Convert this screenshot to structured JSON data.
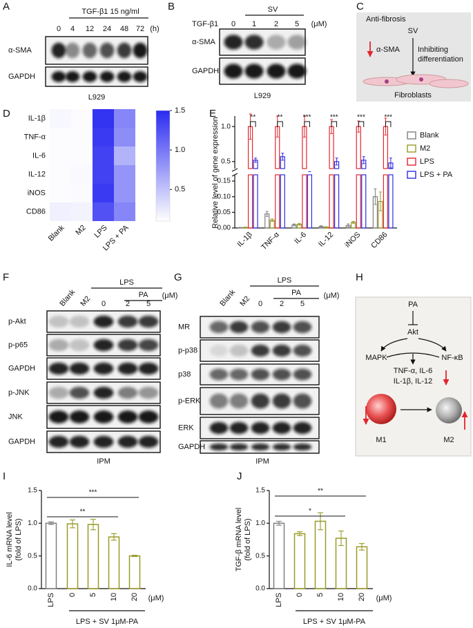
{
  "panel_labels": [
    "A",
    "B",
    "C",
    "D",
    "E",
    "F",
    "G",
    "H",
    "I",
    "J"
  ],
  "blot_a": {
    "treatment": "TGF-β1 15 ng/ml",
    "lanes": [
      "0",
      "4",
      "12",
      "24",
      "48",
      "72"
    ],
    "unit": "(h)",
    "rows": [
      "α-SMA",
      "GAPDH"
    ],
    "cell_line": "L929"
  },
  "blot_b": {
    "treatment": "TGF-β1",
    "drug": "SV",
    "lanes": [
      "0",
      "1",
      "2",
      "5"
    ],
    "unit": "(μM)",
    "rows": [
      "α-SMA",
      "GAPDH"
    ],
    "cell_line": "L929"
  },
  "scheme_c": {
    "title": "Anti-fibrosis",
    "agent": "SV",
    "effect": [
      "Inhibiting",
      "differentiation"
    ],
    "marker": "α-SMA",
    "cells": "Fibroblasts"
  },
  "blot_f": {
    "lanes": [
      "Blank",
      "M2",
      "0",
      "2",
      "5"
    ],
    "unit": "(μM)",
    "group": "LPS",
    "subgroup": "PA",
    "rows": [
      "p-Akt",
      "p-p65",
      "GAPDH",
      "p-JNK",
      "JNK",
      "GAPDH"
    ],
    "cell_type": "IPM"
  },
  "blot_g": {
    "lanes": [
      "Blank",
      "M2",
      "0",
      "2",
      "5"
    ],
    "unit": "(μM)",
    "group": "LPS",
    "subgroup": "PA",
    "rows": [
      "MR",
      "p-p38",
      "p38",
      "p-ERK",
      "ERK",
      "GAPDH"
    ],
    "cell_type": "IPM"
  },
  "scheme_h": {
    "agent": "PA",
    "target": "Akt",
    "left": "MAPK",
    "right": "NF-κB",
    "cytokines": [
      "TNF-α, IL-6",
      "IL-1β, IL-12"
    ],
    "cells": [
      "M1",
      "M2"
    ]
  },
  "chart_data": [
    {
      "type": "heatmap",
      "rows": [
        "IL-1β",
        "TNF-α",
        "IL-6",
        "IL-12",
        "iNOS",
        "CD86"
      ],
      "columns": [
        "Blank",
        "M2",
        "LPS",
        "LPS + PA"
      ],
      "values": [
        [
          0.15,
          0.12,
          1.45,
          0.9
        ],
        [
          0.12,
          0.12,
          1.4,
          0.85
        ],
        [
          0.12,
          0.12,
          1.35,
          0.6
        ],
        [
          0.12,
          0.14,
          1.35,
          0.8
        ],
        [
          0.12,
          0.13,
          1.4,
          0.8
        ],
        [
          0.2,
          0.18,
          1.25,
          0.9
        ]
      ],
      "clim": [
        0.1,
        1.5
      ],
      "cticks": [
        0.5,
        {
          "value": 1,
          "label": "1.0"
        },
        1.5
      ],
      "colors": [
        "#ffffff",
        "#2b2bf2"
      ]
    },
    {
      "type": "bar",
      "ylabel": "Relative level of gene expression",
      "categories": [
        "IL-1β",
        "TNF-α",
        "IL-6",
        "IL-12",
        "iNOS",
        "CD86"
      ],
      "series": [
        {
          "name": "Blank",
          "color": "#7f7f7f",
          "values": [
            0.001,
            0.045,
            0.01,
            0.005,
            0.008,
            0.1
          ],
          "errors": [
            0.001,
            0.008,
            0.003,
            0.002,
            0.005,
            0.025
          ]
        },
        {
          "name": "M2",
          "color": "#999926",
          "values": [
            0.002,
            0.025,
            0.012,
            0.003,
            0.018,
            0.085
          ],
          "errors": [
            0.001,
            0.004,
            0.003,
            0.001,
            0.003,
            0.03
          ]
        },
        {
          "name": "LPS",
          "color": "#e3252d",
          "values": [
            1,
            1,
            1,
            1,
            1,
            1
          ],
          "errors": [
            0.18,
            0.15,
            0.15,
            0.1,
            0.08,
            0.12
          ]
        },
        {
          "name": "LPS + PA",
          "color": "#2b2be6",
          "values": [
            0.52,
            0.57,
            0.35,
            0.5,
            0.52,
            0.48
          ],
          "errors": [
            0.03,
            0.05,
            0.02,
            0.05,
            0.05,
            0.07
          ]
        }
      ],
      "ylim": [
        0,
        0.17
      ],
      "yticks": [
        {
          "value": 0,
          "label": "0.00"
        },
        {
          "value": 0.05,
          "label": "0.05"
        },
        {
          "value": 0.1,
          "label": "0.10"
        },
        {
          "value": 0.15,
          "label": "0.15"
        }
      ],
      "ylim_upper": [
        0.4,
        1.15
      ],
      "yticks_upper": [
        0.5,
        {
          "value": 1,
          "label": "1.0"
        }
      ],
      "annotations": [
        "**",
        "**",
        "***",
        "***",
        "***",
        "***"
      ],
      "legend": "right"
    },
    {
      "type": "bar",
      "ylabel": [
        "IL-6 mRNA level",
        "(fold of LPS)"
      ],
      "categories": [
        "LPS",
        "0",
        "5",
        "10",
        "20"
      ],
      "values": [
        1,
        0.99,
        0.98,
        0.79,
        0.5
      ],
      "errors": [
        0.02,
        0.06,
        0.08,
        0.05,
        0.01
      ],
      "colors": [
        "#7f7f7f",
        "#999926",
        "#999926",
        "#999926",
        "#999926"
      ],
      "ylim": [
        0,
        1.5
      ],
      "yticks": [
        {
          "value": 0,
          "label": "0.0"
        },
        0.5,
        {
          "value": 1,
          "label": "1.0"
        },
        1.5
      ],
      "unit": "(μM)",
      "group_label": "LPS + SV 1μM-PA",
      "annotations": [
        "***",
        "**"
      ]
    },
    {
      "type": "bar",
      "ylabel": [
        "TGF-β mRNA level",
        "(fold of LPS)"
      ],
      "categories": [
        "LPS",
        "0",
        "5",
        "10",
        "20"
      ],
      "values": [
        1,
        0.84,
        1.03,
        0.77,
        0.64
      ],
      "errors": [
        0.03,
        0.03,
        0.13,
        0.11,
        0.05
      ],
      "colors": [
        "#7f7f7f",
        "#999926",
        "#999926",
        "#999926",
        "#999926"
      ],
      "ylim": [
        0,
        1.5
      ],
      "yticks": [
        {
          "value": 0,
          "label": "0.0"
        },
        0.5,
        {
          "value": 1,
          "label": "1.0"
        },
        1.5
      ],
      "unit": "(μM)",
      "group_label": "LPS + SV 1μM-PA",
      "annotations": [
        "**",
        "*"
      ]
    }
  ]
}
